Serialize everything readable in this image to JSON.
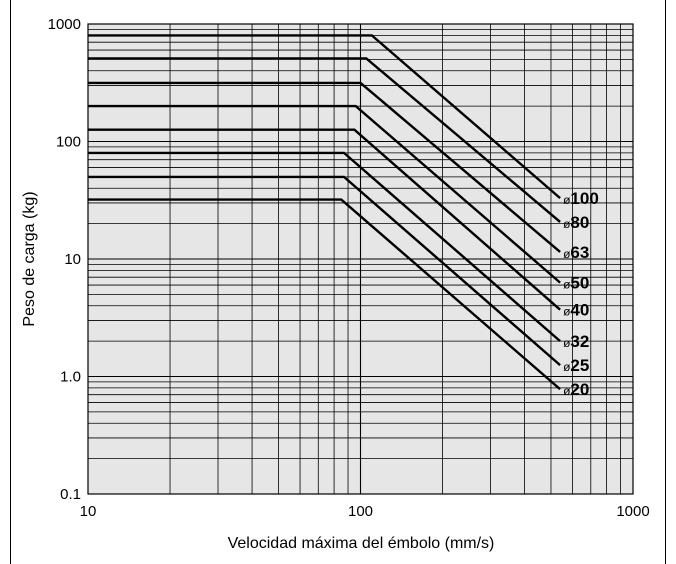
{
  "chart_data": {
    "type": "line",
    "xlabel": "Velocidad máxima del émbolo (mm/s)",
    "ylabel": "Peso de carga (kg)",
    "xscale": "log",
    "yscale": "log",
    "xlim": [
      10,
      1000
    ],
    "ylim": [
      0.1,
      1000
    ],
    "grid": true,
    "background_color": "#e6e6e6",
    "line_color": "#000000",
    "x_tick_labels": [
      "10",
      "100",
      "1000"
    ],
    "y_tick_labels": [
      "0.1",
      "1.0",
      "10",
      "100",
      "1000"
    ],
    "series": [
      {
        "name": "ø100",
        "bore_symbol": "ø",
        "bore_value": "100",
        "x": [
          10,
          110,
          540
        ],
        "y": [
          800,
          800,
          33
        ]
      },
      {
        "name": "ø80",
        "bore_symbol": "ø",
        "bore_value": "80",
        "x": [
          10,
          105,
          540
        ],
        "y": [
          510,
          510,
          20.7
        ]
      },
      {
        "name": "ø63",
        "bore_symbol": "ø",
        "bore_value": "63",
        "x": [
          10,
          100,
          540
        ],
        "y": [
          315,
          315,
          11.5
        ]
      },
      {
        "name": "ø50",
        "bore_symbol": "ø",
        "bore_value": "50",
        "x": [
          10,
          96,
          540
        ],
        "y": [
          200,
          200,
          6.3
        ]
      },
      {
        "name": "ø40",
        "bore_symbol": "ø",
        "bore_value": "40",
        "x": [
          10,
          95,
          540
        ],
        "y": [
          126,
          126,
          3.7
        ]
      },
      {
        "name": "ø32",
        "bore_symbol": "ø",
        "bore_value": "32",
        "x": [
          10,
          87,
          540
        ],
        "y": [
          80,
          80,
          2.0
        ]
      },
      {
        "name": "ø25",
        "bore_symbol": "ø",
        "bore_value": "25",
        "x": [
          10,
          87,
          540
        ],
        "y": [
          50,
          50,
          1.25
        ]
      },
      {
        "name": "ø20",
        "bore_symbol": "ø",
        "bore_value": "20",
        "x": [
          10,
          85,
          540
        ],
        "y": [
          32,
          32,
          0.78
        ]
      }
    ]
  }
}
